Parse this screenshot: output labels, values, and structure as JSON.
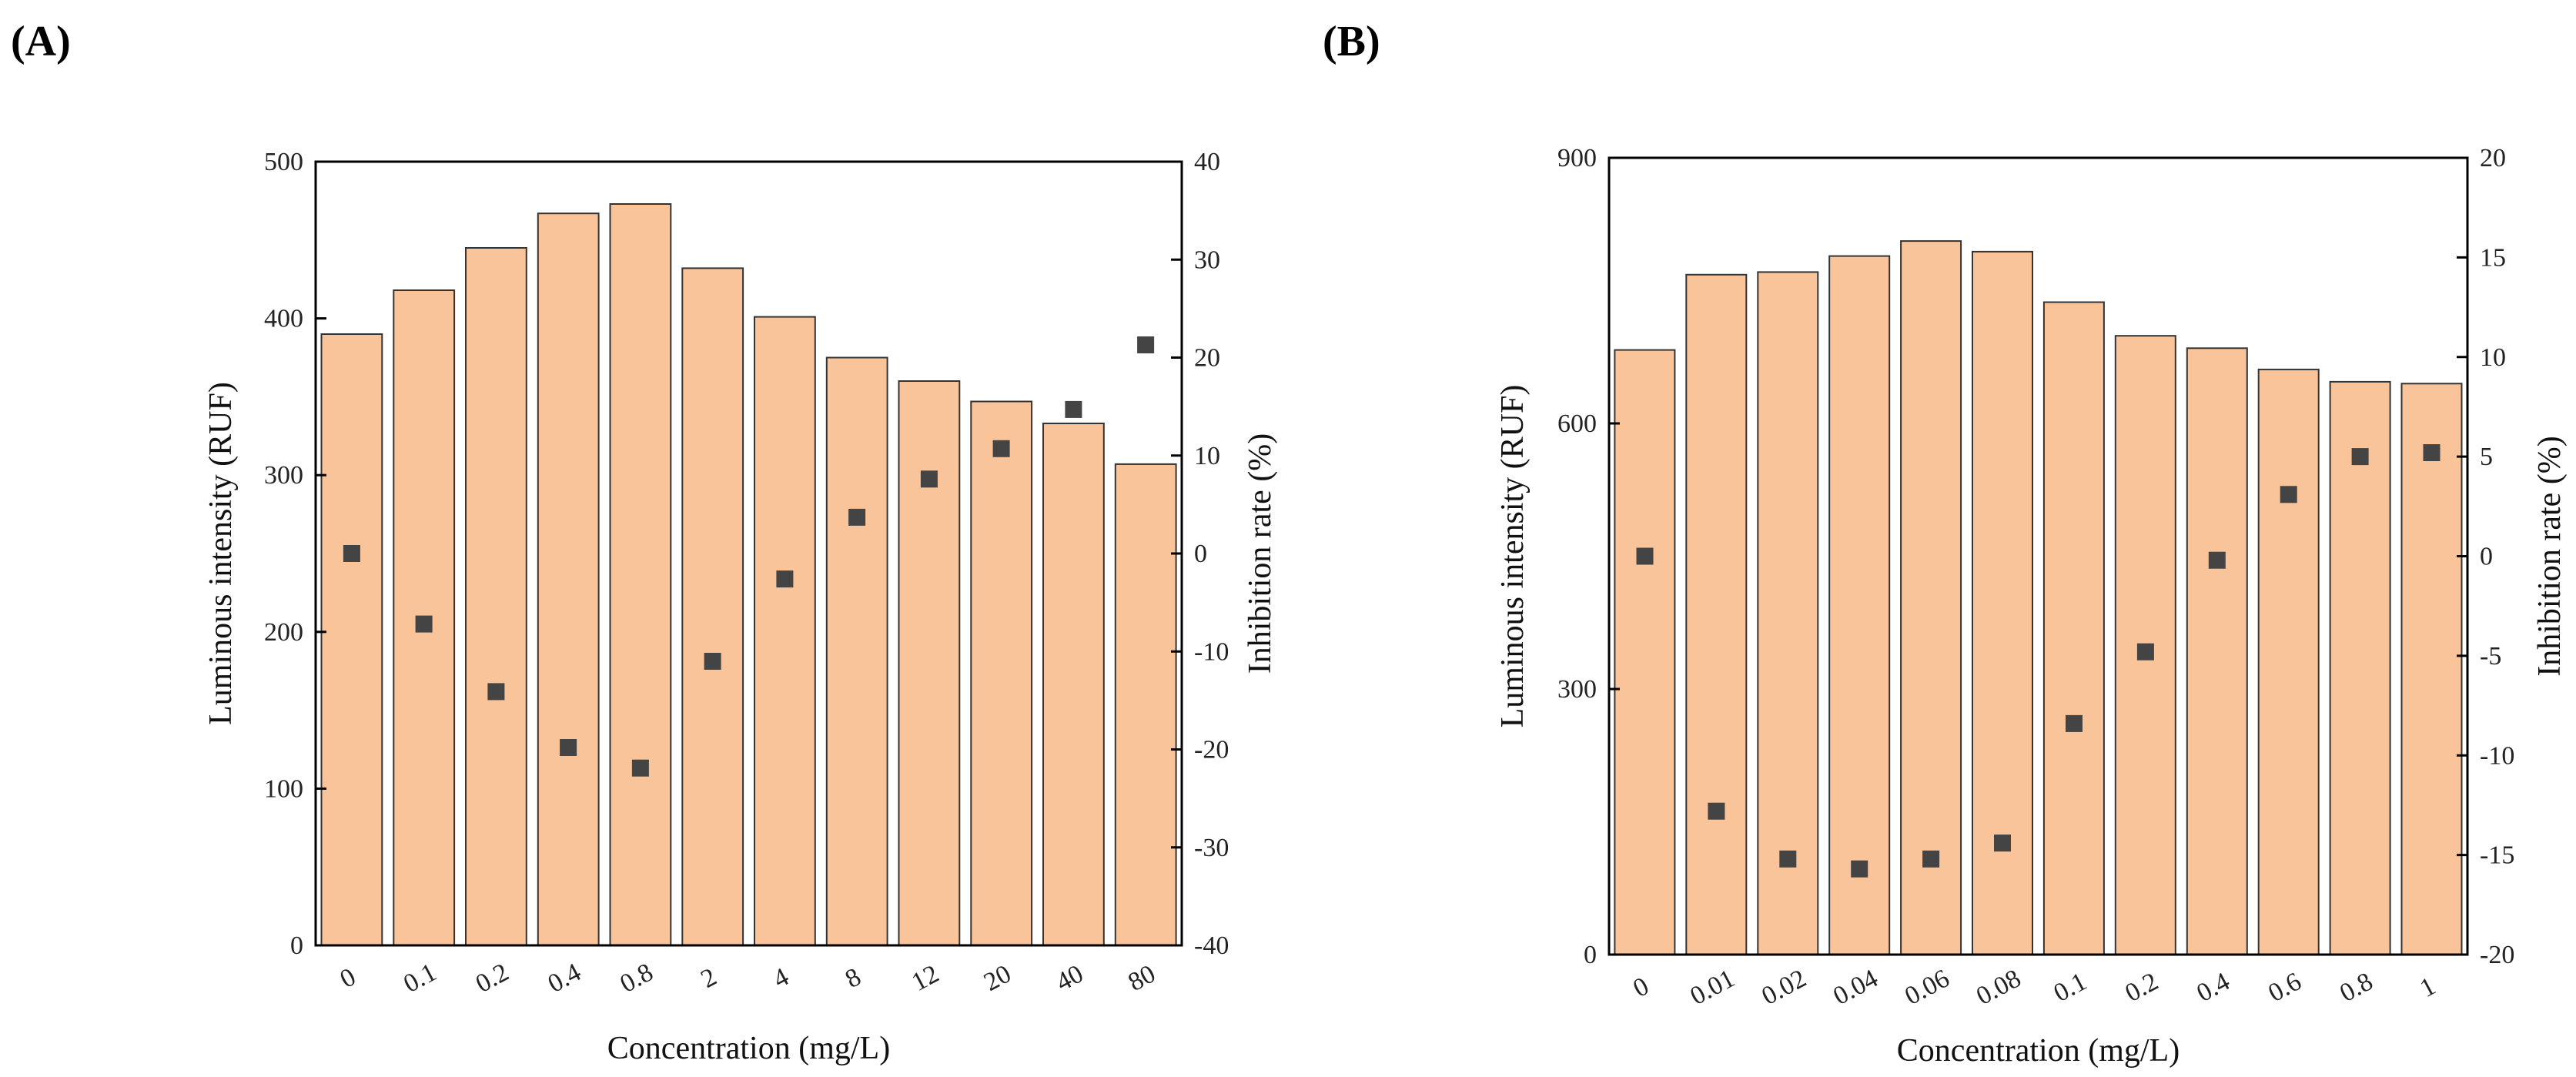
{
  "panels": [
    {
      "label": "(A)"
    },
    {
      "label": "(B)"
    }
  ],
  "chart_data": [
    {
      "type": "bar",
      "title": "",
      "categories": [
        "0",
        "0.1",
        "0.2",
        "0.4",
        "0.8",
        "2",
        "4",
        "8",
        "12",
        "20",
        "40",
        "80"
      ],
      "series": [
        {
          "axis": "left",
          "type": "bar",
          "values": [
            390,
            418,
            445,
            467,
            473,
            432,
            401,
            375,
            360,
            347,
            333,
            307
          ]
        },
        {
          "axis": "right",
          "type": "scatter",
          "values": [
            0,
            -7.2,
            -14.1,
            -19.8,
            -21.9,
            -11.0,
            -2.6,
            3.7,
            7.6,
            10.7,
            14.7,
            21.3
          ]
        }
      ],
      "xlabel": "Concentration (mg/L)",
      "ylabel": "Luminous intensity (RUF)",
      "y2label": "Inhibition rate (%)",
      "ylim": [
        0,
        500
      ],
      "yticks": [
        "0",
        "100",
        "200",
        "300",
        "400",
        "500"
      ],
      "y2lim": [
        -40,
        40
      ],
      "y2ticks": [
        "-40",
        "-30",
        "-20",
        "-10",
        "0",
        "10",
        "20",
        "30",
        "40"
      ],
      "bar_color": "#f9c49a",
      "marker_color": "#444444",
      "grid": false
    },
    {
      "type": "bar",
      "title": "",
      "categories": [
        "0",
        "0.01",
        "0.02",
        "0.04",
        "0.06",
        "0.08",
        "0.1",
        "0.2",
        "0.4",
        "0.6",
        "0.8",
        "1"
      ],
      "series": [
        {
          "axis": "left",
          "type": "bar",
          "values": [
            683,
            768,
            771,
            789,
            806,
            794,
            737,
            699,
            685,
            661,
            647,
            645
          ]
        },
        {
          "axis": "right",
          "type": "scatter",
          "values": [
            0,
            -12.8,
            -15.2,
            -15.7,
            -15.2,
            -14.4,
            -8.4,
            -4.8,
            -0.2,
            3.1,
            5.0,
            5.2
          ]
        }
      ],
      "xlabel": "Concentration (mg/L)",
      "ylabel": "Luminous intensity (RUF)",
      "y2label": "Inhibition rate (%)",
      "ylim": [
        0,
        900
      ],
      "yticks": [
        "0",
        "300",
        "600",
        "900"
      ],
      "y2lim": [
        -20,
        20
      ],
      "y2ticks": [
        "-20",
        "-15",
        "-10",
        "-5",
        "0",
        "5",
        "10",
        "15",
        "20"
      ],
      "bar_color": "#f9c49a",
      "marker_color": "#444444",
      "grid": false
    }
  ]
}
